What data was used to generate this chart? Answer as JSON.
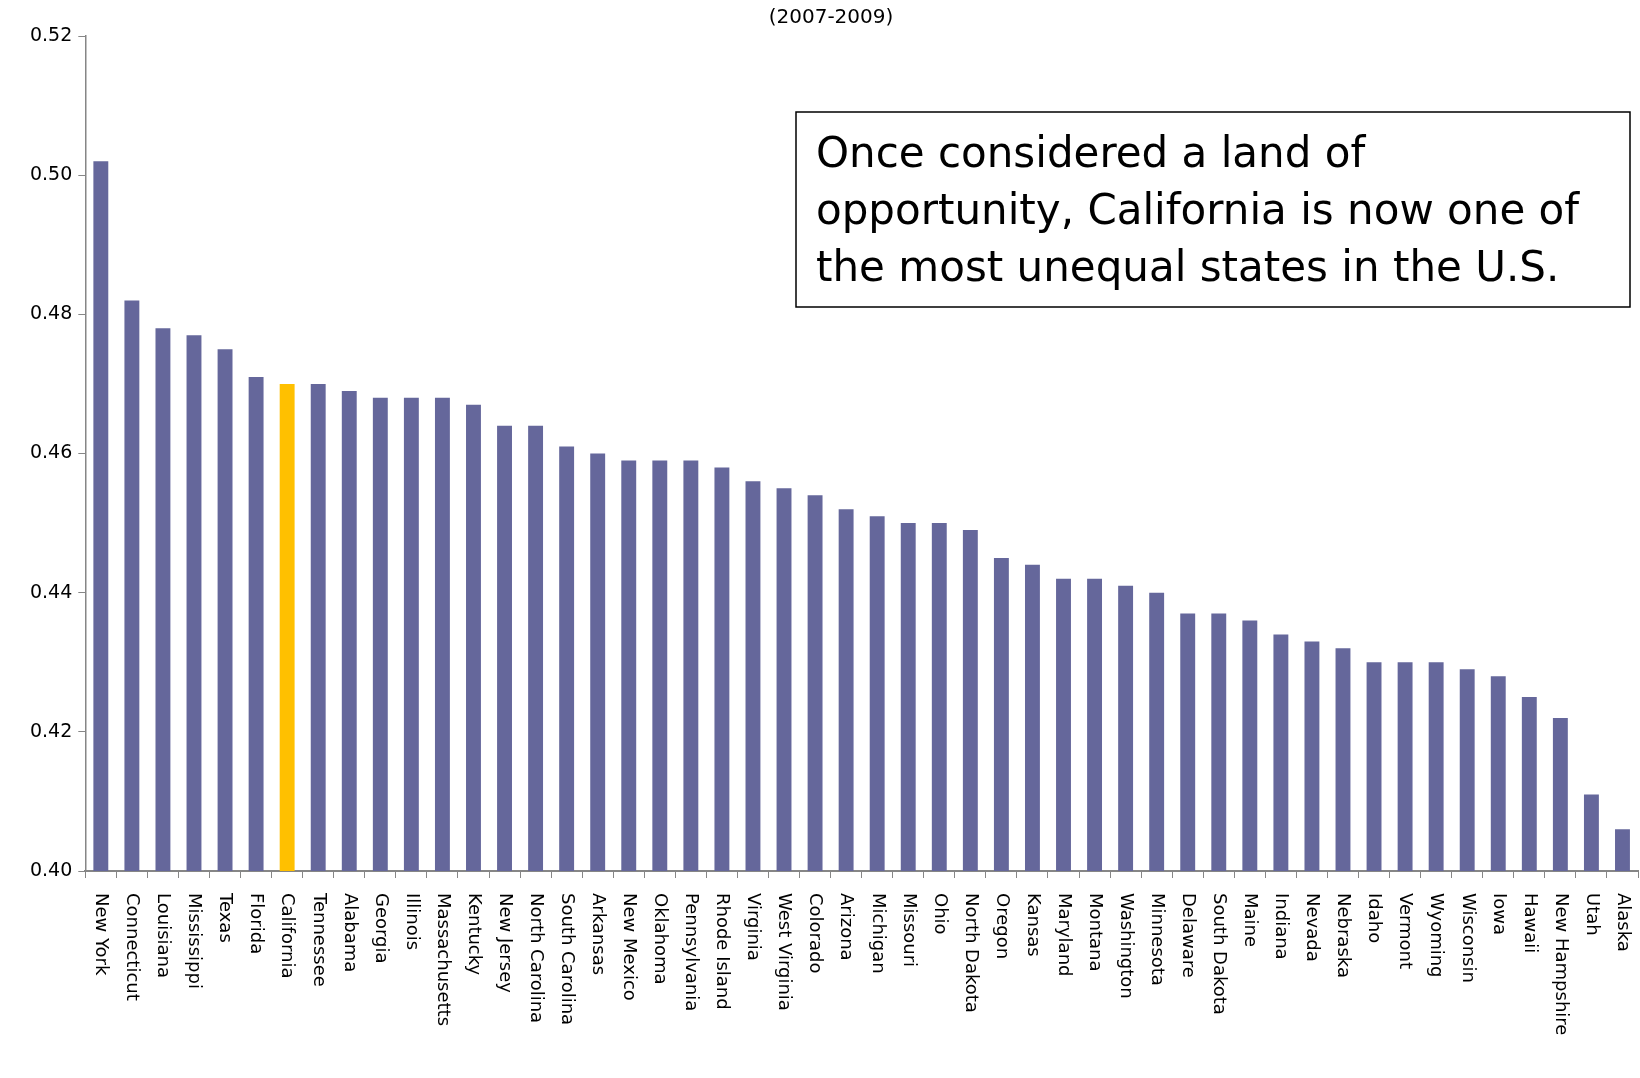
{
  "chart_data": {
    "type": "bar",
    "subtitle": "(2007-2009)",
    "categories": [
      "New York",
      "Connecticut",
      "Louisiana",
      "Mississippi",
      "Texas",
      "Florida",
      "California",
      "Tennessee",
      "Alabama",
      "Georgia",
      "Illinois",
      "Massachusetts",
      "Kentucky",
      "New Jersey",
      "North Carolina",
      "South Carolina",
      "Arkansas",
      "New Mexico",
      "Oklahoma",
      "Pennsylvania",
      "Rhode Island",
      "Virginia",
      "West Virginia",
      "Colorado",
      "Arizona",
      "Michigan",
      "Missouri",
      "Ohio",
      "North Dakota",
      "Oregon",
      "Kansas",
      "Maryland",
      "Montana",
      "Washington",
      "Minnesota",
      "Delaware",
      "South Dakota",
      "Maine",
      "Indiana",
      "Nevada",
      "Nebraska",
      "Idaho",
      "Vermont",
      "Wyoming",
      "Wisconsin",
      "Iowa",
      "Hawaii",
      "New Hampshire",
      "Utah",
      "Alaska"
    ],
    "values": [
      0.502,
      0.482,
      0.478,
      0.477,
      0.475,
      0.471,
      0.47,
      0.47,
      0.469,
      0.468,
      0.468,
      0.468,
      0.467,
      0.464,
      0.464,
      0.461,
      0.46,
      0.459,
      0.459,
      0.459,
      0.458,
      0.456,
      0.455,
      0.454,
      0.452,
      0.451,
      0.45,
      0.45,
      0.449,
      0.445,
      0.444,
      0.442,
      0.442,
      0.441,
      0.44,
      0.437,
      0.437,
      0.436,
      0.434,
      0.433,
      0.432,
      0.43,
      0.43,
      0.43,
      0.429,
      0.428,
      0.425,
      0.422,
      0.411,
      0.406
    ],
    "colors": [
      "#65679b",
      "#65679b",
      "#65679b",
      "#65679b",
      "#65679b",
      "#65679b",
      "#ffc000",
      "#65679b",
      "#65679b",
      "#65679b",
      "#65679b",
      "#65679b",
      "#65679b",
      "#65679b",
      "#65679b",
      "#65679b",
      "#65679b",
      "#65679b",
      "#65679b",
      "#65679b",
      "#65679b",
      "#65679b",
      "#65679b",
      "#65679b",
      "#65679b",
      "#65679b",
      "#65679b",
      "#65679b",
      "#65679b",
      "#65679b",
      "#65679b",
      "#65679b",
      "#65679b",
      "#65679b",
      "#65679b",
      "#65679b",
      "#65679b",
      "#65679b",
      "#65679b",
      "#65679b",
      "#65679b",
      "#65679b",
      "#65679b",
      "#65679b",
      "#65679b",
      "#65679b",
      "#65679b",
      "#65679b",
      "#65679b",
      "#65679b"
    ],
    "ylim": [
      0.4,
      0.52
    ],
    "yticks": [
      {
        "value": 0.4,
        "label": "0.40"
      },
      {
        "value": 0.42,
        "label": "0.42"
      },
      {
        "value": 0.44,
        "label": "0.44"
      },
      {
        "value": 0.46,
        "label": "0.46"
      },
      {
        "value": 0.48,
        "label": "0.48"
      },
      {
        "value": 0.5,
        "label": "0.50"
      },
      {
        "value": 0.52,
        "label": "0.52"
      }
    ],
    "annotations": [
      "Once considered a land of opportunity, California is now one of the most unequal states in the U.S."
    ]
  }
}
